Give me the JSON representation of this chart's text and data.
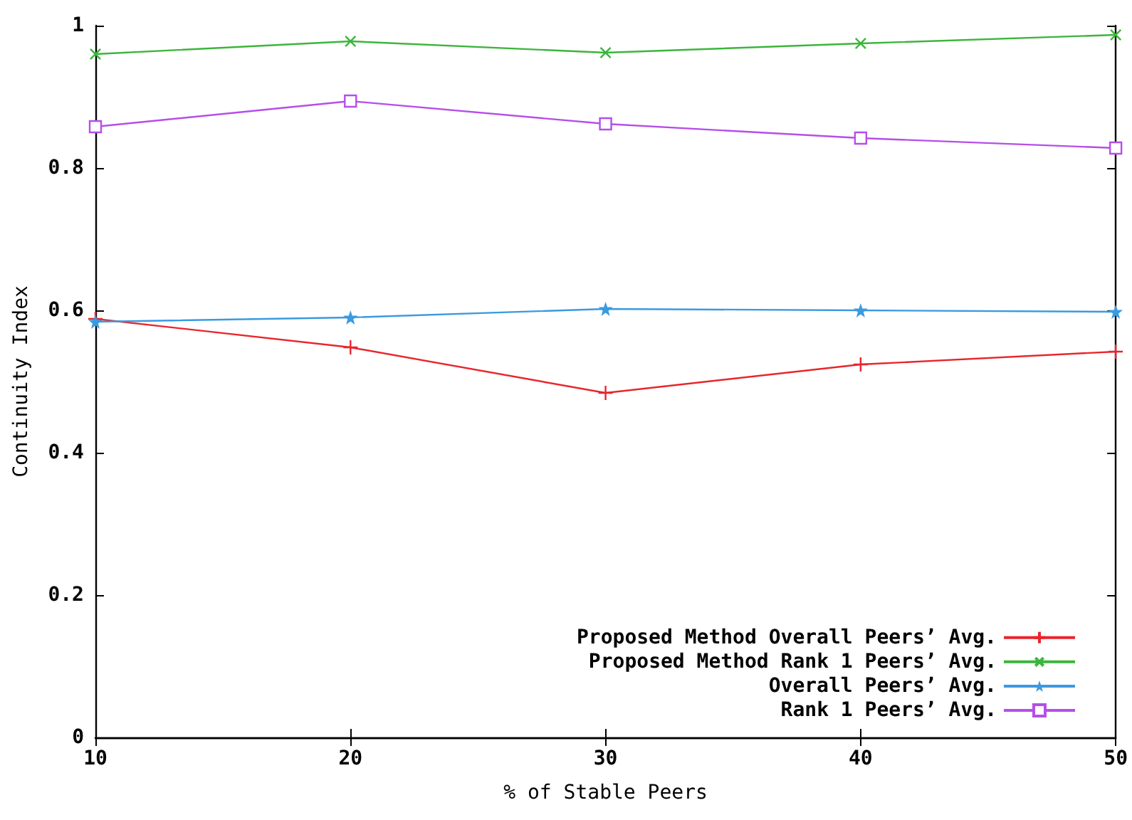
{
  "chart_data": {
    "type": "line",
    "xlabel": "% of Stable Peers",
    "ylabel": "Continuity Index",
    "x": [
      10,
      20,
      30,
      40,
      50
    ],
    "xlim": [
      10,
      50
    ],
    "xticks": [
      10,
      20,
      30,
      40,
      50
    ],
    "ylim": [
      0,
      1
    ],
    "yticks": [
      0,
      0.2,
      0.4,
      0.6,
      0.8,
      1
    ],
    "grid": false,
    "legend": "bottom right",
    "line_style": "solid",
    "series": [
      {
        "name": "Proposed Method Overall Peers’ Avg.",
        "color": "#e8262c",
        "marker": "cross",
        "values": [
          0.588,
          0.548,
          0.484,
          0.524,
          0.542
        ]
      },
      {
        "name": "Proposed Method Rank 1 Peers’ Avg.",
        "color": "#3cb53c",
        "marker": "cross",
        "values": [
          0.96,
          0.978,
          0.962,
          0.975,
          0.987
        ]
      },
      {
        "name": "Overall Peers’ Avg.",
        "color": "#3a9ae0",
        "marker": "star",
        "values": [
          0.584,
          0.59,
          0.602,
          0.6,
          0.598
        ]
      },
      {
        "name": "Rank 1 Peers’ Avg.",
        "color": "#b64ee8",
        "marker": "square",
        "values": [
          0.858,
          0.894,
          0.862,
          0.842,
          0.828
        ]
      }
    ]
  }
}
